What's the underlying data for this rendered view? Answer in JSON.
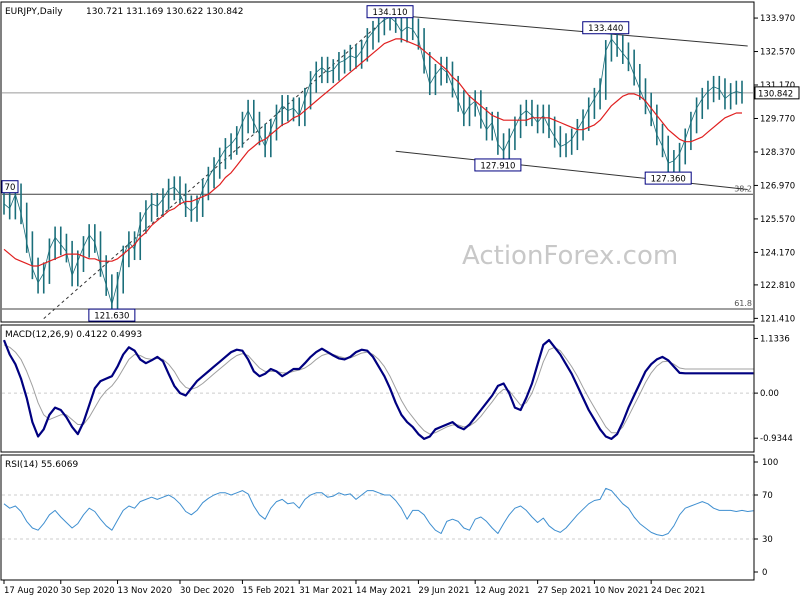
{
  "chart_data": {
    "type": "line",
    "price_pane": {
      "header": {
        "symbol": "EURJPY,Daily",
        "ohlc": "130.721 131.169 130.622 130.842"
      },
      "y_ticks": [
        "133.970",
        "132.570",
        "131.170",
        "129.770",
        "128.370",
        "126.970",
        "125.570",
        "124.170",
        "122.810",
        "121.410"
      ],
      "ylim": [
        121.3,
        134.6
      ],
      "last_price_tag": "130.842",
      "last_price": 130.842,
      "swing_labels": [
        {
          "label": "134.110",
          "date_index": 68,
          "value": 134.11
        },
        {
          "label": "133.440",
          "date_index": 106,
          "value": 133.44
        },
        {
          "label": "127.910",
          "date_index": 87,
          "value": 127.91
        },
        {
          "label": "127.360",
          "date_index": 117,
          "value": 127.36
        },
        {
          "label": "121.630",
          "date_index": 19,
          "value": 121.63
        },
        {
          "label": "70",
          "date_index": 0,
          "value": 127.0
        }
      ],
      "horizontal_levels": [
        {
          "label": "38.2",
          "value": 126.6
        },
        {
          "label": "61.8",
          "value": 121.8
        },
        {
          "label": "",
          "value": 130.842
        }
      ],
      "channel_lines": [
        {
          "style": "solid",
          "from": [
            68,
            134.11
          ],
          "to": [
            131,
            132.8
          ]
        },
        {
          "style": "solid",
          "from": [
            69,
            128.4
          ],
          "to": [
            131,
            126.8
          ]
        },
        {
          "style": "dashed",
          "from": [
            7,
            121.4
          ],
          "to": [
            68,
            134.11
          ]
        }
      ],
      "price_series": [
        126.2,
        126.0,
        126.6,
        125.8,
        124.6,
        123.5,
        122.9,
        123.3,
        124.3,
        124.8,
        124.5,
        124.2,
        123.2,
        123.8,
        124.4,
        124.9,
        124.6,
        123.6,
        122.8,
        122.0,
        122.9,
        124.0,
        124.6,
        124.3,
        125.4,
        125.9,
        126.2,
        126.1,
        126.4,
        126.8,
        126.9,
        126.6,
        126.1,
        125.9,
        126.1,
        126.8,
        127.3,
        127.7,
        128.1,
        128.5,
        128.7,
        129.0,
        129.6,
        130.1,
        129.6,
        129.1,
        128.6,
        129.3,
        129.9,
        130.3,
        130.1,
        130.2,
        129.9,
        130.6,
        131.3,
        131.7,
        131.9,
        131.7,
        131.8,
        132.1,
        132.2,
        132.4,
        132.3,
        132.6,
        133.1,
        133.4,
        133.7,
        133.9,
        134.0,
        133.8,
        133.4,
        133.6,
        133.5,
        133.1,
        132.1,
        131.2,
        131.6,
        131.9,
        131.7,
        131.1,
        130.5,
        129.9,
        130.3,
        130.5,
        129.8,
        129.3,
        129.6,
        128.7,
        128.4,
        128.9,
        129.4,
        129.9,
        130.1,
        129.9,
        129.6,
        129.9,
        129.4,
        129.0,
        128.6,
        128.7,
        128.9,
        129.3,
        129.7,
        130.2,
        130.6,
        131.0,
        132.6,
        133.1,
        132.8,
        132.5,
        132.2,
        131.6,
        131.0,
        130.4,
        129.9,
        129.1,
        128.6,
        127.9,
        128.0,
        128.3,
        128.9,
        129.6,
        130.2,
        130.6,
        130.9,
        131.1,
        131.0,
        130.6,
        130.8,
        130.9,
        130.842
      ],
      "moving_average": [
        124.3,
        124.1,
        123.9,
        123.8,
        123.7,
        123.6,
        123.6,
        123.7,
        123.8,
        123.9,
        124.0,
        124.1,
        124.1,
        124.1,
        124.0,
        123.9,
        123.9,
        123.8,
        123.8,
        123.8,
        123.9,
        124.1,
        124.3,
        124.5,
        124.8,
        125.0,
        125.3,
        125.5,
        125.7,
        125.9,
        126.0,
        126.2,
        126.3,
        126.3,
        126.4,
        126.5,
        126.6,
        126.8,
        127.0,
        127.3,
        127.5,
        127.8,
        128.1,
        128.4,
        128.6,
        128.8,
        128.9,
        129.1,
        129.3,
        129.5,
        129.6,
        129.8,
        129.9,
        130.1,
        130.3,
        130.5,
        130.7,
        130.9,
        131.1,
        131.3,
        131.5,
        131.7,
        131.9,
        132.1,
        132.3,
        132.5,
        132.7,
        132.9,
        133.0,
        133.1,
        133.1,
        133.0,
        132.9,
        132.8,
        132.6,
        132.4,
        132.2,
        132.0,
        131.8,
        131.5,
        131.3,
        131.0,
        130.7,
        130.5,
        130.3,
        130.1,
        129.9,
        129.8,
        129.7,
        129.7,
        129.7,
        129.7,
        129.7,
        129.8,
        129.8,
        129.8,
        129.8,
        129.7,
        129.6,
        129.5,
        129.4,
        129.3,
        129.3,
        129.4,
        129.5,
        129.7,
        130.0,
        130.3,
        130.5,
        130.7,
        130.8,
        130.8,
        130.7,
        130.5,
        130.2,
        129.9,
        129.6,
        129.3,
        129.1,
        128.9,
        128.8,
        128.8,
        128.9,
        129.0,
        129.2,
        129.4,
        129.6,
        129.8,
        129.9,
        130.0,
        130.0
      ]
    },
    "macd_pane": {
      "header": "MACD(12,26,9) 0.4122 0.4993",
      "y_ticks": [
        "1.1336",
        "0.00",
        "-0.9344"
      ],
      "ylim": [
        -1.2,
        1.35
      ],
      "macd_series": [
        1.1,
        0.8,
        0.6,
        0.3,
        -0.1,
        -0.6,
        -0.9,
        -0.75,
        -0.45,
        -0.3,
        -0.35,
        -0.5,
        -0.7,
        -0.85,
        -0.6,
        -0.25,
        0.1,
        0.25,
        0.3,
        0.35,
        0.55,
        0.8,
        0.95,
        0.88,
        0.7,
        0.62,
        0.68,
        0.75,
        0.66,
        0.4,
        0.15,
        0.0,
        -0.05,
        0.1,
        0.25,
        0.35,
        0.45,
        0.55,
        0.65,
        0.75,
        0.85,
        0.9,
        0.88,
        0.7,
        0.45,
        0.35,
        0.4,
        0.5,
        0.45,
        0.35,
        0.42,
        0.5,
        0.5,
        0.62,
        0.75,
        0.85,
        0.92,
        0.85,
        0.78,
        0.72,
        0.7,
        0.75,
        0.85,
        0.9,
        0.88,
        0.75,
        0.55,
        0.35,
        0.1,
        -0.2,
        -0.45,
        -0.6,
        -0.7,
        -0.85,
        -0.95,
        -0.9,
        -0.75,
        -0.7,
        -0.65,
        -0.6,
        -0.7,
        -0.75,
        -0.65,
        -0.5,
        -0.35,
        -0.2,
        -0.05,
        0.15,
        0.2,
        0.0,
        -0.3,
        -0.35,
        -0.1,
        0.2,
        0.6,
        1.0,
        1.1,
        0.95,
        0.8,
        0.6,
        0.4,
        0.15,
        -0.1,
        -0.35,
        -0.55,
        -0.75,
        -0.9,
        -0.95,
        -0.85,
        -0.6,
        -0.3,
        -0.05,
        0.2,
        0.45,
        0.6,
        0.7,
        0.75,
        0.68,
        0.55,
        0.42,
        0.41,
        0.41,
        0.41,
        0.41,
        0.41,
        0.41,
        0.41,
        0.41,
        0.41,
        0.41,
        0.41,
        0.41,
        0.41
      ],
      "signal_series": [
        1.0,
        0.95,
        0.85,
        0.7,
        0.45,
        0.15,
        -0.2,
        -0.45,
        -0.55,
        -0.5,
        -0.45,
        -0.45,
        -0.55,
        -0.65,
        -0.65,
        -0.5,
        -0.3,
        -0.1,
        0.05,
        0.15,
        0.3,
        0.5,
        0.7,
        0.8,
        0.78,
        0.72,
        0.7,
        0.72,
        0.7,
        0.6,
        0.45,
        0.25,
        0.12,
        0.08,
        0.12,
        0.2,
        0.3,
        0.4,
        0.5,
        0.6,
        0.7,
        0.78,
        0.82,
        0.78,
        0.65,
        0.52,
        0.45,
        0.45,
        0.45,
        0.42,
        0.42,
        0.45,
        0.48,
        0.52,
        0.6,
        0.7,
        0.78,
        0.82,
        0.8,
        0.76,
        0.73,
        0.73,
        0.78,
        0.83,
        0.85,
        0.8,
        0.7,
        0.55,
        0.35,
        0.1,
        -0.15,
        -0.35,
        -0.5,
        -0.65,
        -0.78,
        -0.85,
        -0.82,
        -0.76,
        -0.7,
        -0.66,
        -0.66,
        -0.7,
        -0.68,
        -0.6,
        -0.48,
        -0.33,
        -0.18,
        -0.02,
        0.08,
        0.05,
        -0.1,
        -0.25,
        -0.2,
        0.0,
        0.3,
        0.65,
        0.9,
        0.95,
        0.88,
        0.72,
        0.55,
        0.35,
        0.12,
        -0.1,
        -0.3,
        -0.5,
        -0.7,
        -0.82,
        -0.82,
        -0.7,
        -0.48,
        -0.25,
        -0.02,
        0.22,
        0.42,
        0.56,
        0.65,
        0.66,
        0.6,
        0.52,
        0.5,
        0.5,
        0.5,
        0.5,
        0.5,
        0.5,
        0.5,
        0.5,
        0.5,
        0.5,
        0.5,
        0.5,
        0.5
      ]
    },
    "rsi_pane": {
      "header": "RSI(14) 55.6069",
      "y_ticks": [
        "100",
        "70",
        "30",
        "0"
      ],
      "ylim": [
        0,
        100
      ],
      "levels": [
        70,
        30
      ],
      "rsi_series": [
        62,
        58,
        60,
        55,
        46,
        40,
        38,
        44,
        52,
        56,
        50,
        45,
        40,
        44,
        52,
        58,
        55,
        48,
        42,
        38,
        47,
        56,
        60,
        58,
        64,
        66,
        68,
        66,
        68,
        70,
        67,
        62,
        55,
        52,
        56,
        63,
        67,
        70,
        72,
        72,
        70,
        72,
        74,
        71,
        60,
        52,
        48,
        58,
        64,
        66,
        62,
        63,
        58,
        66,
        70,
        72,
        72,
        68,
        69,
        72,
        70,
        71,
        66,
        70,
        74,
        74,
        72,
        70,
        70,
        65,
        58,
        48,
        56,
        56,
        52,
        44,
        38,
        35,
        46,
        48,
        46,
        40,
        38,
        48,
        50,
        46,
        40,
        35,
        44,
        52,
        58,
        60,
        56,
        50,
        45,
        49,
        42,
        38,
        36,
        40,
        46,
        52,
        57,
        62,
        65,
        66,
        76,
        74,
        68,
        62,
        58,
        50,
        44,
        40,
        36,
        34,
        33,
        35,
        42,
        52,
        58,
        60,
        62,
        64,
        62,
        58,
        56,
        56,
        56,
        55,
        56,
        55,
        55.6
      ]
    },
    "x_ticks": [
      {
        "label": "17 Aug 2020",
        "index": 0
      },
      {
        "label": "30 Sep 2020",
        "index": 10
      },
      {
        "label": "13 Nov 2020",
        "index": 20
      },
      {
        "label": "30 Dec 2020",
        "index": 31
      },
      {
        "label": "15 Feb 2021",
        "index": 42
      },
      {
        "label": "31 Mar 2021",
        "index": 52
      },
      {
        "label": "14 May 2021",
        "index": 62
      },
      {
        "label": "29 Jun 2021",
        "index": 73
      },
      {
        "label": "12 Aug 2021",
        "index": 83
      },
      {
        "label": "27 Sep 2021",
        "index": 94
      },
      {
        "label": "10 Nov 2021",
        "index": 104
      },
      {
        "label": "24 Dec 2021",
        "index": 114
      }
    ],
    "watermark": "ActionForex.com",
    "colors": {
      "price": "#1a6e7a",
      "moving_average": "#e02020",
      "macd": "#000080",
      "signal": "#a0a0a0",
      "rsi": "#3f8fd0",
      "levels": "#404040",
      "grid": "#cccccc"
    }
  }
}
